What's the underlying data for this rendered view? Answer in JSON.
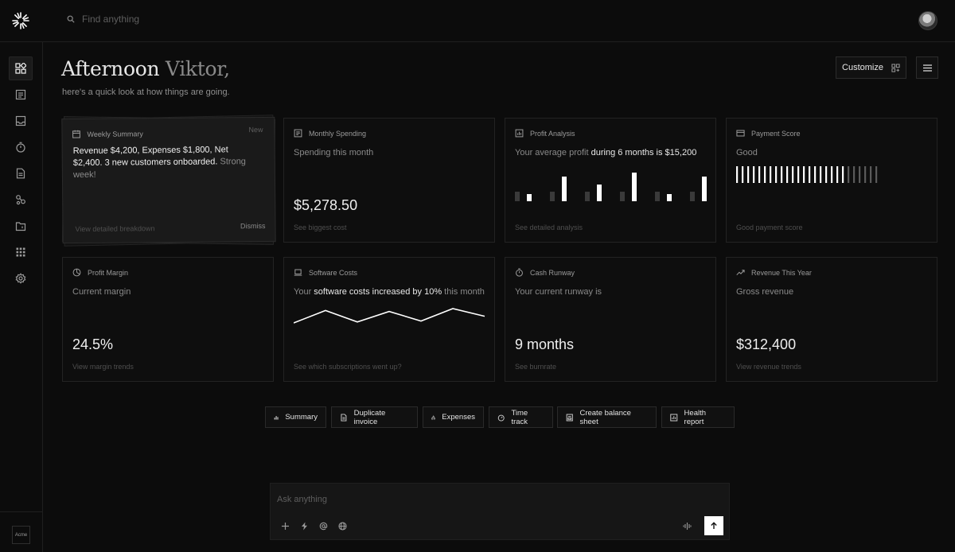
{
  "search": {
    "placeholder": "Find anything"
  },
  "greeting": {
    "prefix": "Afternoon",
    "name": "Viktor,",
    "subtitle": "here's a quick look at how things are going."
  },
  "header_actions": {
    "customize_label": "Customize"
  },
  "sidebar": {
    "items": [
      {
        "icon": "dashboard-icon",
        "active": true
      },
      {
        "icon": "transactions-icon"
      },
      {
        "icon": "inbox-icon"
      },
      {
        "icon": "timer-icon"
      },
      {
        "icon": "invoice-icon"
      },
      {
        "icon": "customers-icon"
      },
      {
        "icon": "vault-icon"
      },
      {
        "icon": "apps-icon"
      },
      {
        "icon": "settings-icon"
      }
    ],
    "team_label": "Acme"
  },
  "weekly": {
    "title": "Weekly Summary",
    "tag": "New",
    "text": "Revenue $4,200, Expenses $1,800, Net $2,400. 3 new customers onboarded.",
    "text_dim": "Strong week!",
    "link": "View detailed breakdown",
    "dismiss": "Dismiss"
  },
  "cards": {
    "monthly_spending": {
      "title": "Monthly Spending",
      "desc": "Spending this month",
      "value": "$5,278.50",
      "link": "See biggest cost"
    },
    "profit_analysis": {
      "title": "Profit Analysis",
      "desc_a": "Your average profit",
      "desc_b": "during 6 months is $15,200",
      "link": "See detailed analysis",
      "bars": [
        [
          0.33,
          0.26
        ],
        [
          0.33,
          0.87
        ],
        [
          0.33,
          0.58
        ],
        [
          0.33,
          1.0
        ],
        [
          0.33,
          0.26
        ],
        [
          0.33,
          0.87
        ]
      ]
    },
    "payment_score": {
      "title": "Payment Score",
      "desc": "Good",
      "link": "Good payment score",
      "score": 0.77,
      "ticks": 26
    },
    "profit_margin": {
      "title": "Profit Margin",
      "desc": "Current margin",
      "value": "24.5%",
      "link": "View margin trends"
    },
    "software_costs": {
      "title": "Software Costs",
      "desc_a": "Your",
      "desc_b": "software costs increased by 10%",
      "desc_c": "this month",
      "link": "See which subscriptions went up?",
      "trend": [
        0.25,
        0.9,
        0.3,
        0.85,
        0.35,
        1.0,
        0.6
      ]
    },
    "cash_runway": {
      "title": "Cash Runway",
      "desc": "Your current runway is",
      "value": "9 months",
      "link": "See burnrate"
    },
    "revenue_year": {
      "title": "Revenue This Year",
      "desc": "Gross revenue",
      "value": "$312,400",
      "link": "View revenue trends"
    }
  },
  "quick_actions": [
    {
      "label": "Summary",
      "icon": "bar-chart-icon"
    },
    {
      "label": "Duplicate invoice",
      "icon": "document-icon"
    },
    {
      "label": "Expenses",
      "icon": "shapes-icon"
    },
    {
      "label": "Time track",
      "icon": "timer-icon"
    },
    {
      "label": "Create balance sheet",
      "icon": "receipt-icon"
    },
    {
      "label": "Health report",
      "icon": "report-icon"
    }
  ],
  "ask": {
    "placeholder": "Ask anything"
  }
}
